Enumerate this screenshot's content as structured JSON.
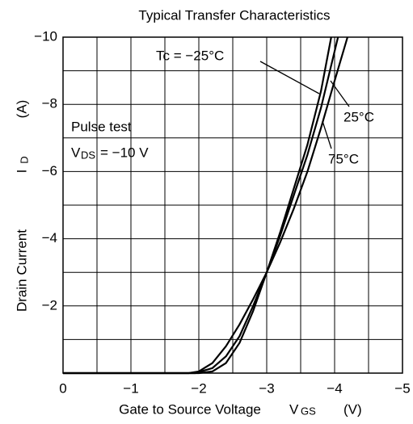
{
  "chart_data": {
    "type": "line",
    "title": "Typical Transfer Characteristics",
    "xlabel": {
      "text": "Gate to Source Voltage",
      "symbol": "V",
      "subscript": "GS",
      "unit": "(V)"
    },
    "ylabel": {
      "text": "Drain Current",
      "symbol": "I",
      "subscript": "D",
      "unit": "(A)"
    },
    "annotations": {
      "pulse": "Pulse test",
      "vds": {
        "symbol": "V",
        "subscript": "DS",
        "text": "= −10 V"
      }
    },
    "xlim": [
      0,
      -5
    ],
    "xticks": [
      0,
      {
        "value": -1,
        "label": "−1"
      },
      {
        "value": -2,
        "label": "−2"
      },
      {
        "value": -3,
        "label": "−3"
      },
      {
        "value": -4,
        "label": "−4"
      },
      {
        "value": -5,
        "label": "−5"
      }
    ],
    "xminorticks": [
      -0.5,
      -1.5,
      -2.5,
      -3.5,
      -4.5
    ],
    "ylim": [
      0,
      -10
    ],
    "yticks": [
      {
        "value": -2,
        "label": "−2"
      },
      {
        "value": -4,
        "label": "−4"
      },
      {
        "value": -6,
        "label": "−6"
      },
      {
        "value": -8,
        "label": "−8"
      },
      {
        "value": -10,
        "label": "−10"
      }
    ],
    "yminorticks": [
      -1,
      -3,
      -5,
      -7,
      -9
    ],
    "grid": true,
    "color": "#000000",
    "series": [
      {
        "name": "Tc = −25°C",
        "x": [
          0,
          -2.0,
          -2.2,
          -2.4,
          -2.6,
          -2.8,
          -3.0,
          -3.2,
          -3.4,
          -3.6,
          -3.8,
          -3.95
        ],
        "values": [
          0,
          0,
          -0.05,
          -0.3,
          -0.9,
          -1.85,
          -3,
          -4.2,
          -5.5,
          -6.8,
          -8.4,
          -10
        ]
      },
      {
        "name": "25°C",
        "x": [
          0,
          -1.95,
          -2.2,
          -2.4,
          -2.6,
          -2.8,
          -3.0,
          -3.2,
          -3.4,
          -3.6,
          -3.8,
          -4.05
        ],
        "values": [
          0,
          0,
          -0.15,
          -0.5,
          -1.1,
          -2.0,
          -3,
          -4.1,
          -5.3,
          -6.5,
          -7.9,
          -10
        ]
      },
      {
        "name": "75°C",
        "x": [
          0,
          -1.85,
          -2.0,
          -2.2,
          -2.4,
          -2.6,
          -2.8,
          -3.0,
          -3.2,
          -3.4,
          -3.6,
          -3.8,
          -4.0,
          -4.19
        ],
        "values": [
          0,
          0,
          -0.05,
          -0.3,
          -0.8,
          -1.45,
          -2.2,
          -3.0,
          -3.9,
          -4.9,
          -6.0,
          -7.3,
          -8.7,
          -10
        ]
      }
    ]
  }
}
